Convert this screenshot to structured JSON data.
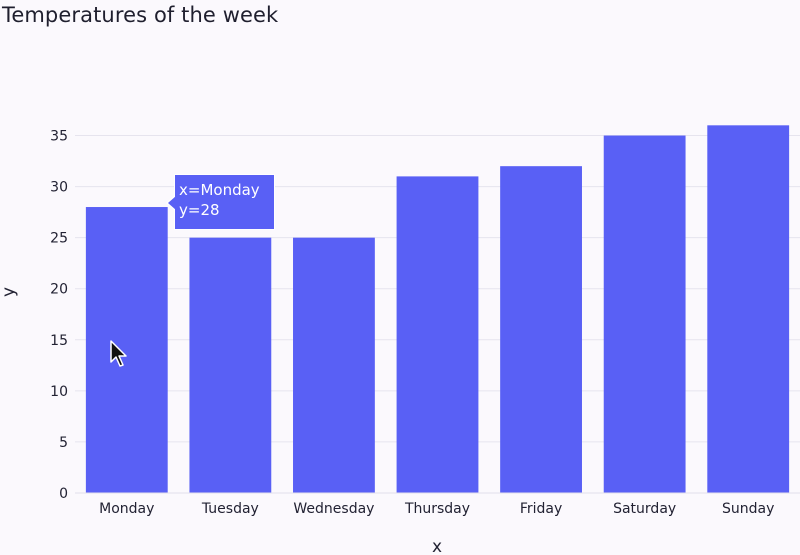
{
  "chart_data": {
    "type": "bar",
    "title": "Temperatures of the week",
    "xlabel": "x",
    "ylabel": "y",
    "categories": [
      "Monday",
      "Tuesday",
      "Wednesday",
      "Thursday",
      "Friday",
      "Saturday",
      "Sunday"
    ],
    "values": [
      28,
      25,
      25,
      31,
      32,
      35,
      36
    ],
    "ylim": [
      0,
      37.5
    ],
    "yticks": [
      0,
      5,
      10,
      15,
      20,
      25,
      30,
      35
    ],
    "grid": true,
    "bar_color": "#5960f5",
    "tooltip": {
      "x_text": "x=Monday",
      "y_text": "y=28"
    }
  }
}
